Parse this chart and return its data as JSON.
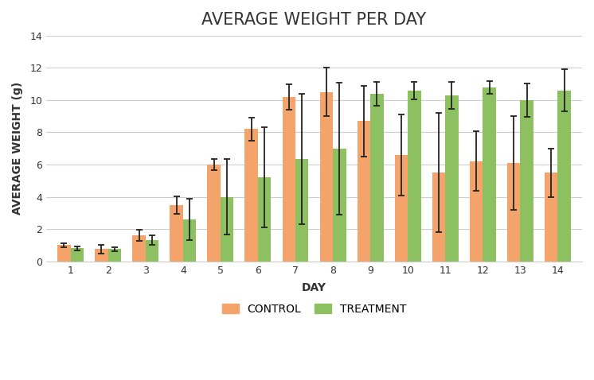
{
  "title": "AVERAGE WEIGHT PER DAY",
  "xlabel": "DAY",
  "ylabel": "AVERAGE WEIGHT (g)",
  "days": [
    1,
    2,
    3,
    4,
    5,
    6,
    7,
    8,
    9,
    10,
    11,
    12,
    13,
    14
  ],
  "control_mean": [
    1.0,
    0.75,
    1.6,
    3.5,
    6.0,
    8.2,
    10.2,
    10.5,
    8.7,
    6.6,
    5.5,
    6.2,
    6.1,
    5.5
  ],
  "control_err": [
    0.12,
    0.25,
    0.35,
    0.55,
    0.35,
    0.7,
    0.8,
    1.5,
    2.2,
    2.5,
    3.7,
    1.85,
    2.9,
    1.5
  ],
  "treatment_mean": [
    0.8,
    0.75,
    1.3,
    2.6,
    4.0,
    5.2,
    6.35,
    7.0,
    10.4,
    10.6,
    10.3,
    10.8,
    10.0,
    10.6
  ],
  "treatment_err": [
    0.12,
    0.12,
    0.3,
    1.3,
    2.35,
    3.1,
    4.05,
    4.1,
    0.75,
    0.55,
    0.85,
    0.4,
    1.05,
    1.3
  ],
  "control_color": "#F4A46A",
  "treatment_color": "#8DC060",
  "bar_width": 0.35,
  "legend_labels": [
    "CONTROL",
    "TREATMENT"
  ],
  "ylim": [
    0,
    14
  ],
  "yticks": [
    0,
    2,
    4,
    6,
    8,
    10,
    12,
    14
  ],
  "title_fontsize": 15,
  "axis_label_fontsize": 10,
  "tick_fontsize": 9,
  "legend_fontsize": 10,
  "background_color": "#ffffff",
  "grid_color": "#cccccc",
  "error_bar_color": "#222222",
  "title_color": "#333333",
  "axis_label_color": "#333333"
}
